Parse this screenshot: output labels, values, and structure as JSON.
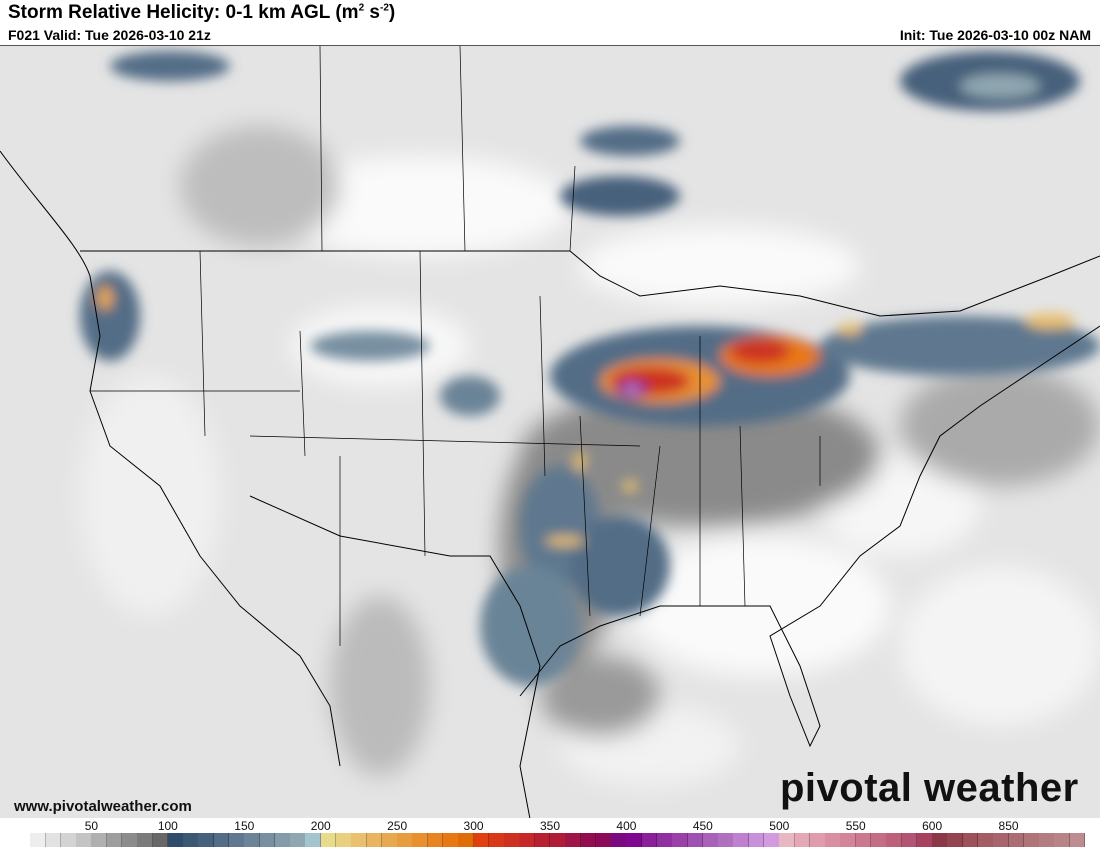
{
  "header": {
    "title": "Storm Relative Helicity: 0-1 km AGL (m",
    "title_sup1": "2",
    "title_mid": " s",
    "title_sup2": "-2",
    "title_end": ")",
    "valid": "F021 Valid: Tue 2026-03-10 21z",
    "init": "Init: Tue 2026-03-10 00z NAM"
  },
  "footer": {
    "url": "www.pivotalweather.com",
    "logo": "pivotal weather"
  },
  "colorbar": {
    "labels": [
      {
        "text": "50",
        "index": 5
      },
      {
        "text": "100",
        "index": 10
      },
      {
        "text": "150",
        "index": 15
      },
      {
        "text": "200",
        "index": 20
      },
      {
        "text": "250",
        "index": 25
      },
      {
        "text": "300",
        "index": 30
      },
      {
        "text": "350",
        "index": 35
      },
      {
        "text": "400",
        "index": 40
      },
      {
        "text": "450",
        "index": 45
      },
      {
        "text": "500",
        "index": 50
      },
      {
        "text": "550",
        "index": 55
      },
      {
        "text": "600",
        "index": 60
      },
      {
        "text": "850",
        "index": 65
      }
    ],
    "colors": [
      "#ffffff",
      "#eeeeee",
      "#e2e2e2",
      "#d4d4d4",
      "#c4c4c4",
      "#b0b0b0",
      "#9e9e9e",
      "#8c8c8c",
      "#7a7a7a",
      "#686868",
      "#2f4d6a",
      "#3b5873",
      "#46617b",
      "#536d86",
      "#5f788f",
      "#6b8497",
      "#778fa0",
      "#849ba9",
      "#90a7b1",
      "#a3c4cc",
      "#e8dc8c",
      "#e8d080",
      "#e8c070",
      "#e8b460",
      "#e8a850",
      "#e89c40",
      "#e89030",
      "#e88420",
      "#e87814",
      "#e06c08",
      "#e04010",
      "#d83818",
      "#cc3020",
      "#c42828",
      "#b82030",
      "#b01c38",
      "#a01448",
      "#940c50",
      "#8c0858",
      "#7a0880",
      "#800890",
      "#8a2098",
      "#9030a0",
      "#9a40a8",
      "#a050b0",
      "#a860b8",
      "#b070c0",
      "#c080d0",
      "#c890d8",
      "#d49ae0",
      "#e8b8c0",
      "#e4a8b4",
      "#e09cac",
      "#d890a0",
      "#d48498",
      "#cc7890",
      "#c46c84",
      "#bc607c",
      "#b45474",
      "#a84060",
      "#8a3848",
      "#944450",
      "#9c5058",
      "#a45c64",
      "#a8646c",
      "#ac6c74",
      "#b07478",
      "#b47c80",
      "#b88488",
      "#bc8c90"
    ]
  }
}
